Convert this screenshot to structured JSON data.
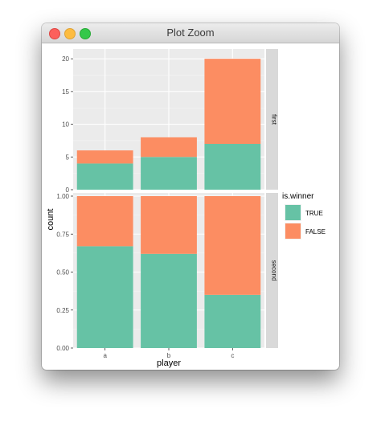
{
  "window": {
    "title": "Plot Zoom"
  },
  "colors": {
    "true": "#66c2a5",
    "false": "#fc8d62",
    "panel_bg": "#ebebeb",
    "strip_bg": "#d9d9d9",
    "grid": "#ffffff",
    "text": "#4d4d4d"
  },
  "chart_data": {
    "type": "bar",
    "stacked": true,
    "facets": [
      {
        "strip": "first",
        "ylim": [
          0,
          21
        ],
        "yticks": [
          0,
          5,
          10,
          15,
          20
        ],
        "ytick_labels": [
          "0",
          "5",
          "10",
          "15",
          "20"
        ],
        "series": [
          {
            "name": "TRUE",
            "values": [
              4,
              5,
              7
            ]
          },
          {
            "name": "FALSE",
            "values": [
              2,
              3,
              13
            ]
          }
        ]
      },
      {
        "strip": "second",
        "ylim": [
          0,
          1
        ],
        "yticks": [
          0,
          0.25,
          0.5,
          0.75,
          1.0
        ],
        "ytick_labels": [
          "0.00",
          "0.25",
          "0.50",
          "0.75",
          "1.00"
        ],
        "series": [
          {
            "name": "TRUE",
            "values": [
              0.67,
              0.62,
              0.35
            ]
          },
          {
            "name": "FALSE",
            "values": [
              0.33,
              0.38,
              0.65
            ]
          }
        ]
      }
    ],
    "categories": [
      "a",
      "b",
      "c"
    ],
    "xlabel": "player",
    "ylabel": "count",
    "legend": {
      "title": "is.winner",
      "position": "right",
      "entries": [
        {
          "label": "TRUE",
          "color": "#66c2a5"
        },
        {
          "label": "FALSE",
          "color": "#fc8d62"
        }
      ]
    },
    "grid": true
  }
}
